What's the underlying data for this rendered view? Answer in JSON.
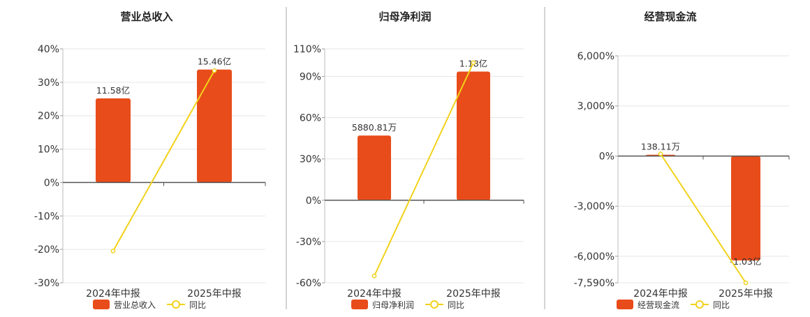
{
  "colors": {
    "bar": "#e84c1a",
    "line": "#f2d21b",
    "grid": "#e6e6e6",
    "axis": "#333333",
    "separator": "#aaaaaa",
    "text": "#333333"
  },
  "chart_data": [
    {
      "type": "bar",
      "title": "营业总收入",
      "categories": [
        "2024年中报",
        "2025年中报"
      ],
      "y_ticks": [
        "40%",
        "30%",
        "20%",
        "10%",
        "0%",
        "-10%",
        "-20%",
        "-30%"
      ],
      "ylim": [
        -30,
        40
      ],
      "series": [
        {
          "name": "营业总收入",
          "type": "bar",
          "values": [
            25.2,
            33.8
          ],
          "labels": [
            "11.58亿",
            "15.46亿"
          ]
        },
        {
          "name": "同比",
          "type": "line",
          "values": [
            -20.5,
            33.5
          ]
        }
      ],
      "legend": "bottom-center"
    },
    {
      "type": "bar",
      "title": "归母净利润",
      "categories": [
        "2024年中报",
        "2025年中报"
      ],
      "y_ticks": [
        "110%",
        "90%",
        "60%",
        "30%",
        "0%",
        "-30%",
        "-60%"
      ],
      "ylim": [
        -60,
        110
      ],
      "series": [
        {
          "name": "归母净利润",
          "type": "bar",
          "values": [
            47,
            93.5
          ],
          "labels": [
            "5880.81万",
            "1.18亿"
          ]
        },
        {
          "name": "同比",
          "type": "line",
          "values": [
            -55,
            100
          ]
        }
      ],
      "legend": "bottom-center"
    },
    {
      "type": "bar",
      "title": "经营现金流",
      "categories": [
        "2024年中报",
        "2025年中报"
      ],
      "y_ticks": [
        "6,000%",
        "3,000%",
        "0%",
        "-3,000%",
        "-6,000%",
        "-7,590%"
      ],
      "ylim": [
        -7590,
        6000
      ],
      "series": [
        {
          "name": "经营现金流",
          "type": "bar",
          "values": [
            80,
            -6250
          ],
          "labels": [
            "138.11万",
            "-1.03亿"
          ]
        },
        {
          "name": "同比",
          "type": "line",
          "values": [
            130,
            -7590
          ]
        }
      ],
      "legend": "bottom-center"
    }
  ]
}
